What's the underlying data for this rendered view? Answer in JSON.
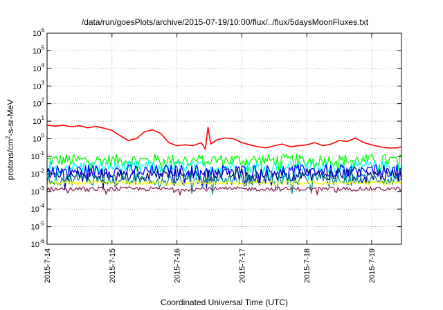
{
  "chart_data": {
    "type": "line",
    "title": "/data/run/goesPlots/archive/2015-07-19/10:00/flux/../flux/5daysMoonFluxes.txt",
    "xlabel": "Coordinated Universal Time (UTC)",
    "ylabel": "protons/cm²-s-sr-MeV",
    "ylabel_parts": {
      "pre": "protons/cm",
      "sup": "2",
      "post": "-s-sr-MeV"
    },
    "y_scale": "log",
    "ylim": [
      1e-06,
      1000000.0
    ],
    "y_ticks": [
      {
        "base": "10",
        "exp": "-6",
        "value": 1e-06
      },
      {
        "base": "10",
        "exp": "-5",
        "value": 1e-05
      },
      {
        "base": "10",
        "exp": "-4",
        "value": 0.0001
      },
      {
        "base": "10",
        "exp": "-3",
        "value": 0.001
      },
      {
        "base": "10",
        "exp": "-2",
        "value": 0.01
      },
      {
        "base": "10",
        "exp": "-1",
        "value": 0.1
      },
      {
        "base": "10",
        "exp": "0",
        "value": 1
      },
      {
        "base": "10",
        "exp": "1",
        "value": 10
      },
      {
        "base": "10",
        "exp": "2",
        "value": 100
      },
      {
        "base": "10",
        "exp": "3",
        "value": 1000
      },
      {
        "base": "10",
        "exp": "4",
        "value": 10000
      },
      {
        "base": "10",
        "exp": "5",
        "value": 100000
      },
      {
        "base": "10",
        "exp": "6",
        "value": 1000000
      }
    ],
    "xlim": [
      "2015-07-14 00:00",
      "2015-07-19 11:00"
    ],
    "x_ticks": [
      {
        "label": "2015-7-14",
        "date": "2015-07-14"
      },
      {
        "label": "2015-7-15",
        "date": "2015-07-15"
      },
      {
        "label": "2015-7-16",
        "date": "2015-07-16"
      },
      {
        "label": "2015-7-17",
        "date": "2015-07-17"
      },
      {
        "label": "2015-7-18",
        "date": "2015-07-18"
      },
      {
        "label": "2015-7-19",
        "date": "2015-07-19"
      }
    ],
    "grid": true,
    "series": [
      {
        "color": "#ff0000",
        "approx_level": 1.0,
        "points": [
          [
            "2015-07-14 00:00",
            6.0
          ],
          [
            "2015-07-14 03:00",
            5.2
          ],
          [
            "2015-07-14 06:00",
            5.8
          ],
          [
            "2015-07-14 09:00",
            4.8
          ],
          [
            "2015-07-14 12:00",
            5.5
          ],
          [
            "2015-07-14 15:00",
            4.2
          ],
          [
            "2015-07-14 18:00",
            5.0
          ],
          [
            "2015-07-14 21:00",
            4.0
          ],
          [
            "2015-07-15 00:00",
            3.0
          ],
          [
            "2015-07-15 03:00",
            1.5
          ],
          [
            "2015-07-15 06:00",
            0.8
          ],
          [
            "2015-07-15 09:00",
            1.0
          ],
          [
            "2015-07-15 12:00",
            2.5
          ],
          [
            "2015-07-15 15:00",
            3.2
          ],
          [
            "2015-07-15 18:00",
            2.0
          ],
          [
            "2015-07-15 21:00",
            0.6
          ],
          [
            "2015-07-16 00:00",
            0.4
          ],
          [
            "2015-07-16 03:00",
            0.45
          ],
          [
            "2015-07-16 06:00",
            0.4
          ],
          [
            "2015-07-16 09:00",
            0.6
          ],
          [
            "2015-07-16 10:30",
            0.25
          ],
          [
            "2015-07-16 11:30",
            4.5
          ],
          [
            "2015-07-16 12:30",
            0.5
          ],
          [
            "2015-07-16 15:00",
            0.9
          ],
          [
            "2015-07-16 18:00",
            1.1
          ],
          [
            "2015-07-16 21:00",
            1.0
          ],
          [
            "2015-07-17 00:00",
            0.6
          ],
          [
            "2015-07-17 03:00",
            0.45
          ],
          [
            "2015-07-17 06:00",
            0.35
          ],
          [
            "2015-07-17 09:00",
            0.3
          ],
          [
            "2015-07-17 12:00",
            0.4
          ],
          [
            "2015-07-17 15:00",
            0.5
          ],
          [
            "2015-07-17 18:00",
            0.35
          ],
          [
            "2015-07-17 21:00",
            0.4
          ],
          [
            "2015-07-18 00:00",
            0.45
          ],
          [
            "2015-07-18 03:00",
            0.6
          ],
          [
            "2015-07-18 06:00",
            0.4
          ],
          [
            "2015-07-18 09:00",
            0.5
          ],
          [
            "2015-07-18 12:00",
            0.8
          ],
          [
            "2015-07-18 15:00",
            0.7
          ],
          [
            "2015-07-18 18:00",
            1.1
          ],
          [
            "2015-07-18 21:00",
            0.6
          ],
          [
            "2015-07-19 00:00",
            0.45
          ],
          [
            "2015-07-19 03:00",
            0.35
          ],
          [
            "2015-07-19 06:00",
            0.3
          ],
          [
            "2015-07-19 09:00",
            0.3
          ],
          [
            "2015-07-19 11:00",
            0.35
          ]
        ]
      },
      {
        "color": "#00ff00",
        "approx_level": 0.06
      },
      {
        "color": "#00ffff",
        "approx_level": 0.025
      },
      {
        "color": "#0000ff",
        "approx_level": 0.015
      },
      {
        "color": "#00008b",
        "approx_level": 0.009
      },
      {
        "color": "#008b8b",
        "approx_level": 0.005
      },
      {
        "color": "#ffff00",
        "approx_level": 0.003
      },
      {
        "color": "#8b2252",
        "approx_level": 0.0014
      }
    ]
  }
}
